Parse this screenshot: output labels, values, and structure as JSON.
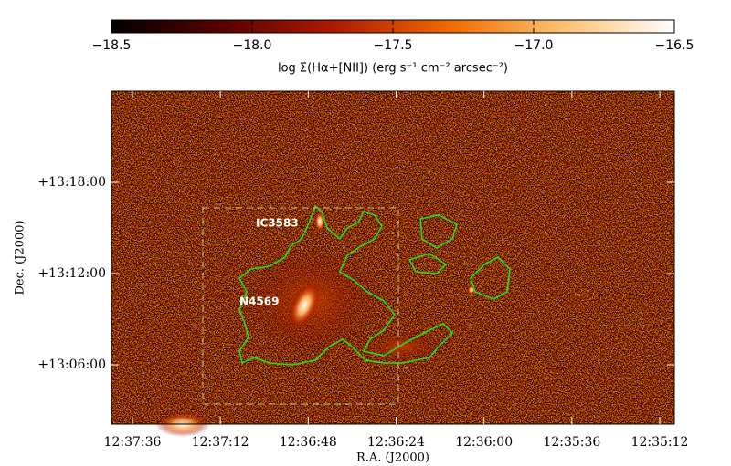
{
  "chart_data": {
    "type": "image",
    "colorbar": {
      "label": "log Σ(Hα+[NII]) (erg s⁻¹ cm⁻² arcsec⁻²)",
      "lim": [
        -18.5,
        -16.5
      ],
      "ticks": [
        {
          "value": -18.5,
          "label": "−18.5"
        },
        {
          "value": -18.0,
          "label": "−18.0"
        },
        {
          "value": -17.5,
          "label": "−17.5"
        },
        {
          "value": -17.0,
          "label": "−17.0"
        },
        {
          "value": -16.5,
          "label": "−16.5"
        }
      ],
      "colors": [
        "#000000",
        "#5a0000",
        "#b01a00",
        "#f06a00",
        "#ffc070",
        "#ffffff"
      ]
    },
    "xlabel": "R.A. (J2000)",
    "ylabel": "Dec. (J2000)",
    "xlim": [
      12.62826,
      12.58556
    ],
    "xticks": [
      {
        "value": 12.626667,
        "label": "12:37:36"
      },
      {
        "value": 12.62,
        "label": "12:37:12"
      },
      {
        "value": 12.613333,
        "label": "12:36:48"
      },
      {
        "value": 12.606667,
        "label": "12:36:24"
      },
      {
        "value": 12.6,
        "label": "12:36:00"
      },
      {
        "value": 12.593333,
        "label": "12:35:36"
      },
      {
        "value": 12.586667,
        "label": "12:35:12"
      }
    ],
    "ylim": [
      13.035,
      13.4
    ],
    "yticks": [
      {
        "value": 13.3,
        "label": "+13:18:00"
      },
      {
        "value": 13.2,
        "label": "+13:12:00"
      },
      {
        "value": 13.1,
        "label": "+13:06:00"
      }
    ],
    "annotations": [
      "IC3583",
      "N4569"
    ],
    "contour_color": "#22dd22"
  }
}
